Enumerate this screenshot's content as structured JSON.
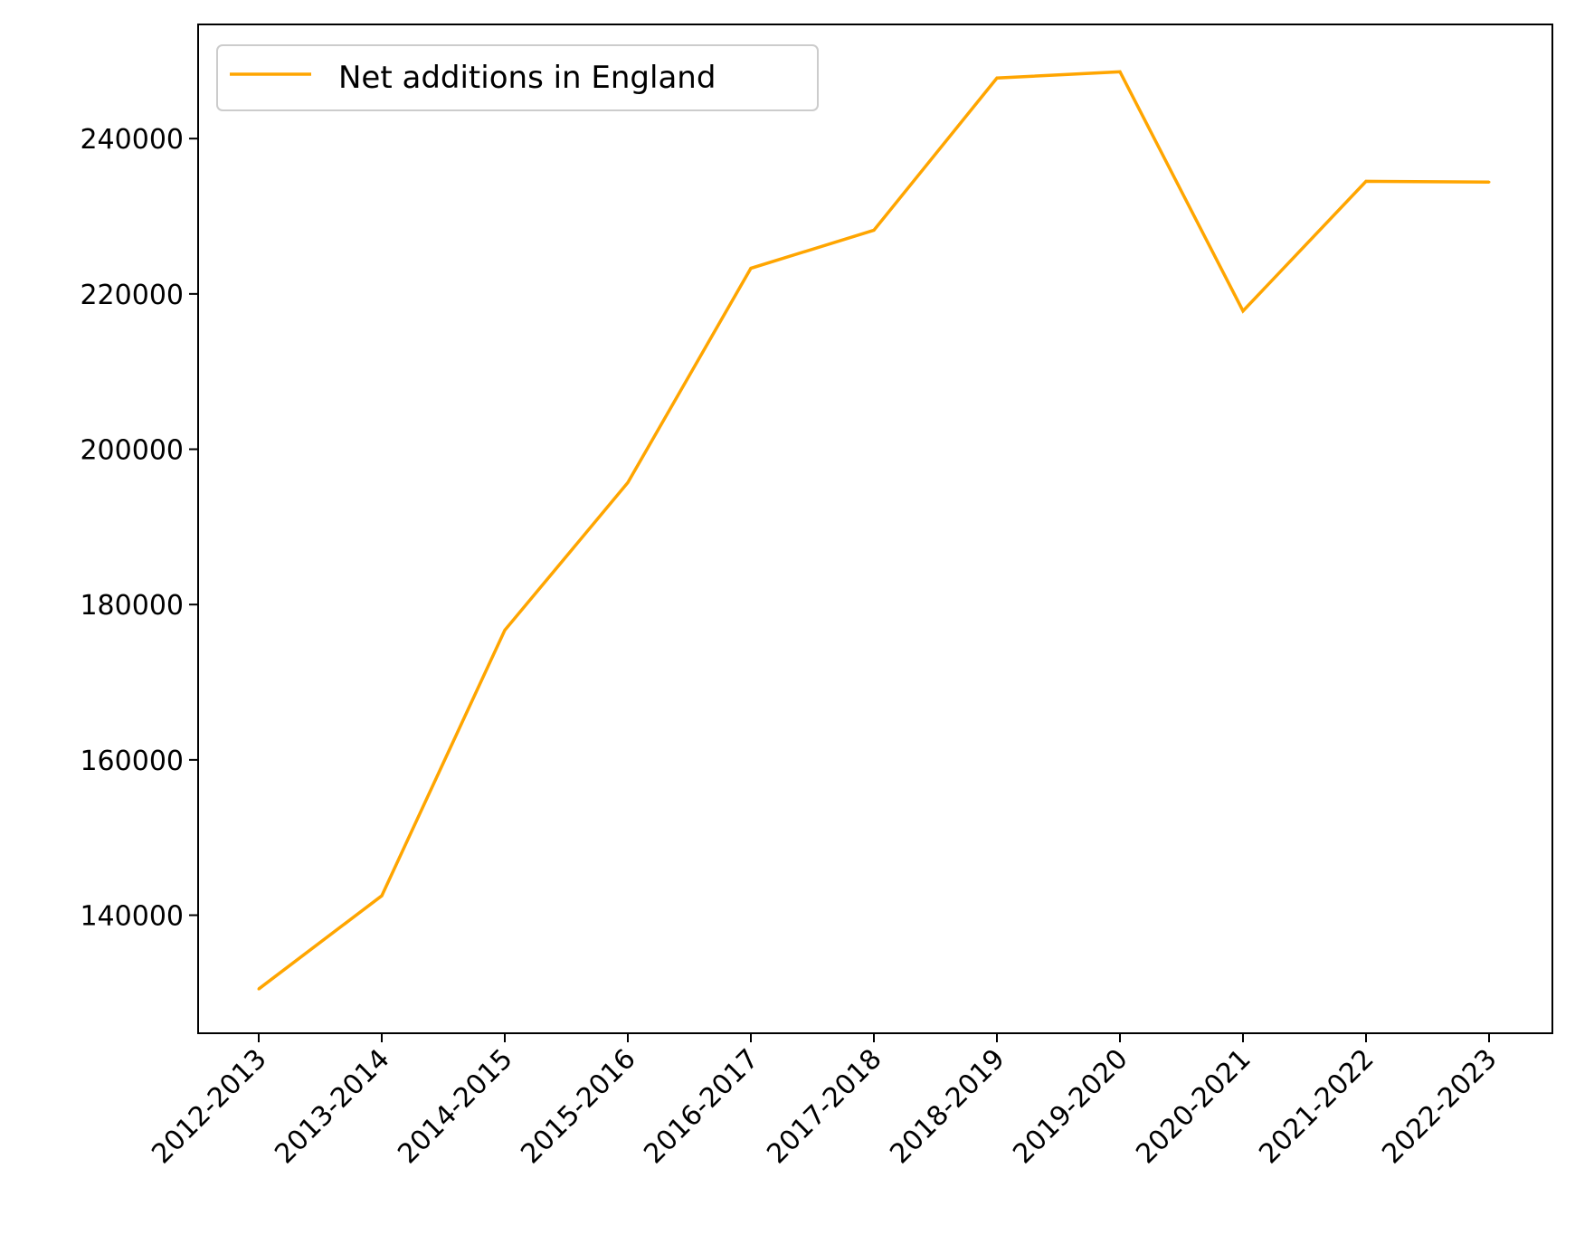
{
  "chart_data": {
    "type": "line",
    "title": "",
    "xlabel": "",
    "ylabel": "",
    "categories": [
      "2012-2013",
      "2013-2014",
      "2014-2015",
      "2015-2016",
      "2016-2017",
      "2017-2018",
      "2018-2019",
      "2019-2020",
      "2020-2021",
      "2021-2022",
      "2022-2023"
    ],
    "series": [
      {
        "name": "Net additions in England",
        "color": "#FFA500",
        "values": [
          130500,
          142500,
          176700,
          195700,
          223300,
          228200,
          247800,
          248600,
          217800,
          234500,
          234400
        ]
      }
    ],
    "yticks": [
      140000,
      160000,
      180000,
      200000,
      220000,
      240000
    ],
    "ylim": [
      124800,
      254700
    ],
    "grid": false,
    "legend": {
      "position": "top-left"
    }
  }
}
